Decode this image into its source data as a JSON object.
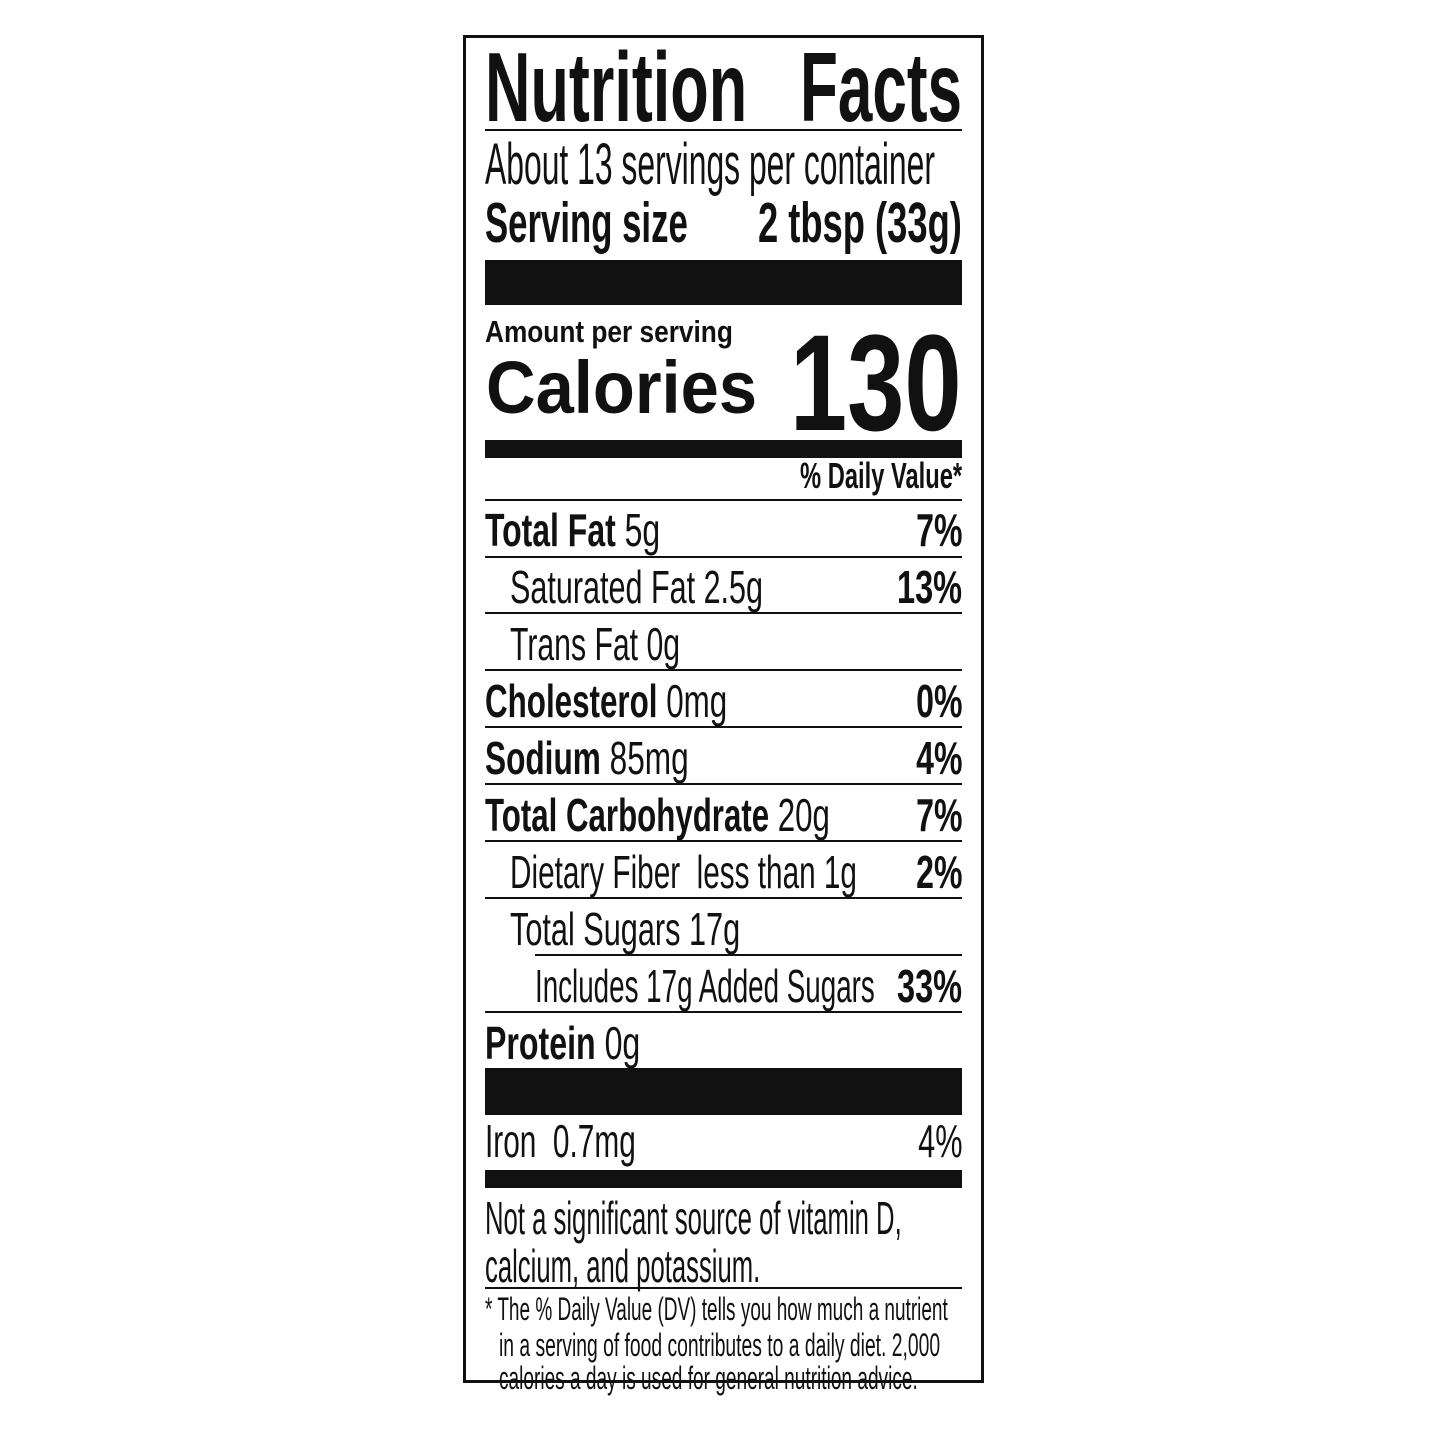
{
  "title": {
    "left": "Nutrition",
    "right": "Facts"
  },
  "servings_per_container": "About 13 servings per container",
  "serving_size": {
    "label": "Serving size",
    "value": "2 tbsp (33g)"
  },
  "amount_per_serving": "Amount per serving",
  "calories": {
    "label": "Calories",
    "value": "130"
  },
  "daily_value_header": "% Daily Value*",
  "nutrients": [
    {
      "name": "Total Fat",
      "amount": "5g",
      "dv": "7%"
    },
    {
      "name": "Saturated Fat",
      "amount": "2.5g",
      "dv": "13%"
    },
    {
      "name": "Trans Fat",
      "amount": "0g",
      "dv": ""
    },
    {
      "name": "Cholesterol",
      "amount": "0mg",
      "dv": "0%"
    },
    {
      "name": "Sodium",
      "amount": "85mg",
      "dv": "4%"
    },
    {
      "name": "Total Carbohydrate",
      "amount": "20g",
      "dv": "7%"
    },
    {
      "name": "Dietary Fiber",
      "amount": "less than 1g",
      "dv": "2%"
    },
    {
      "name": "Total Sugars",
      "amount": "17g",
      "dv": ""
    },
    {
      "name": "Includes 17g Added Sugars",
      "amount": "",
      "dv": "33%"
    },
    {
      "name": "Protein",
      "amount": "0g",
      "dv": ""
    }
  ],
  "vitamins": [
    {
      "name": "Iron",
      "amount": "0.7mg",
      "dv": "4%"
    }
  ],
  "note": [
    "Not a significant source of vitamin D,",
    "calcium, and potassium."
  ],
  "footnote": [
    "* The % Daily Value (DV) tells you how much a nutrient",
    "in a serving of food contributes to a daily diet. 2,000",
    "calories a day is used for general nutrition advice."
  ]
}
